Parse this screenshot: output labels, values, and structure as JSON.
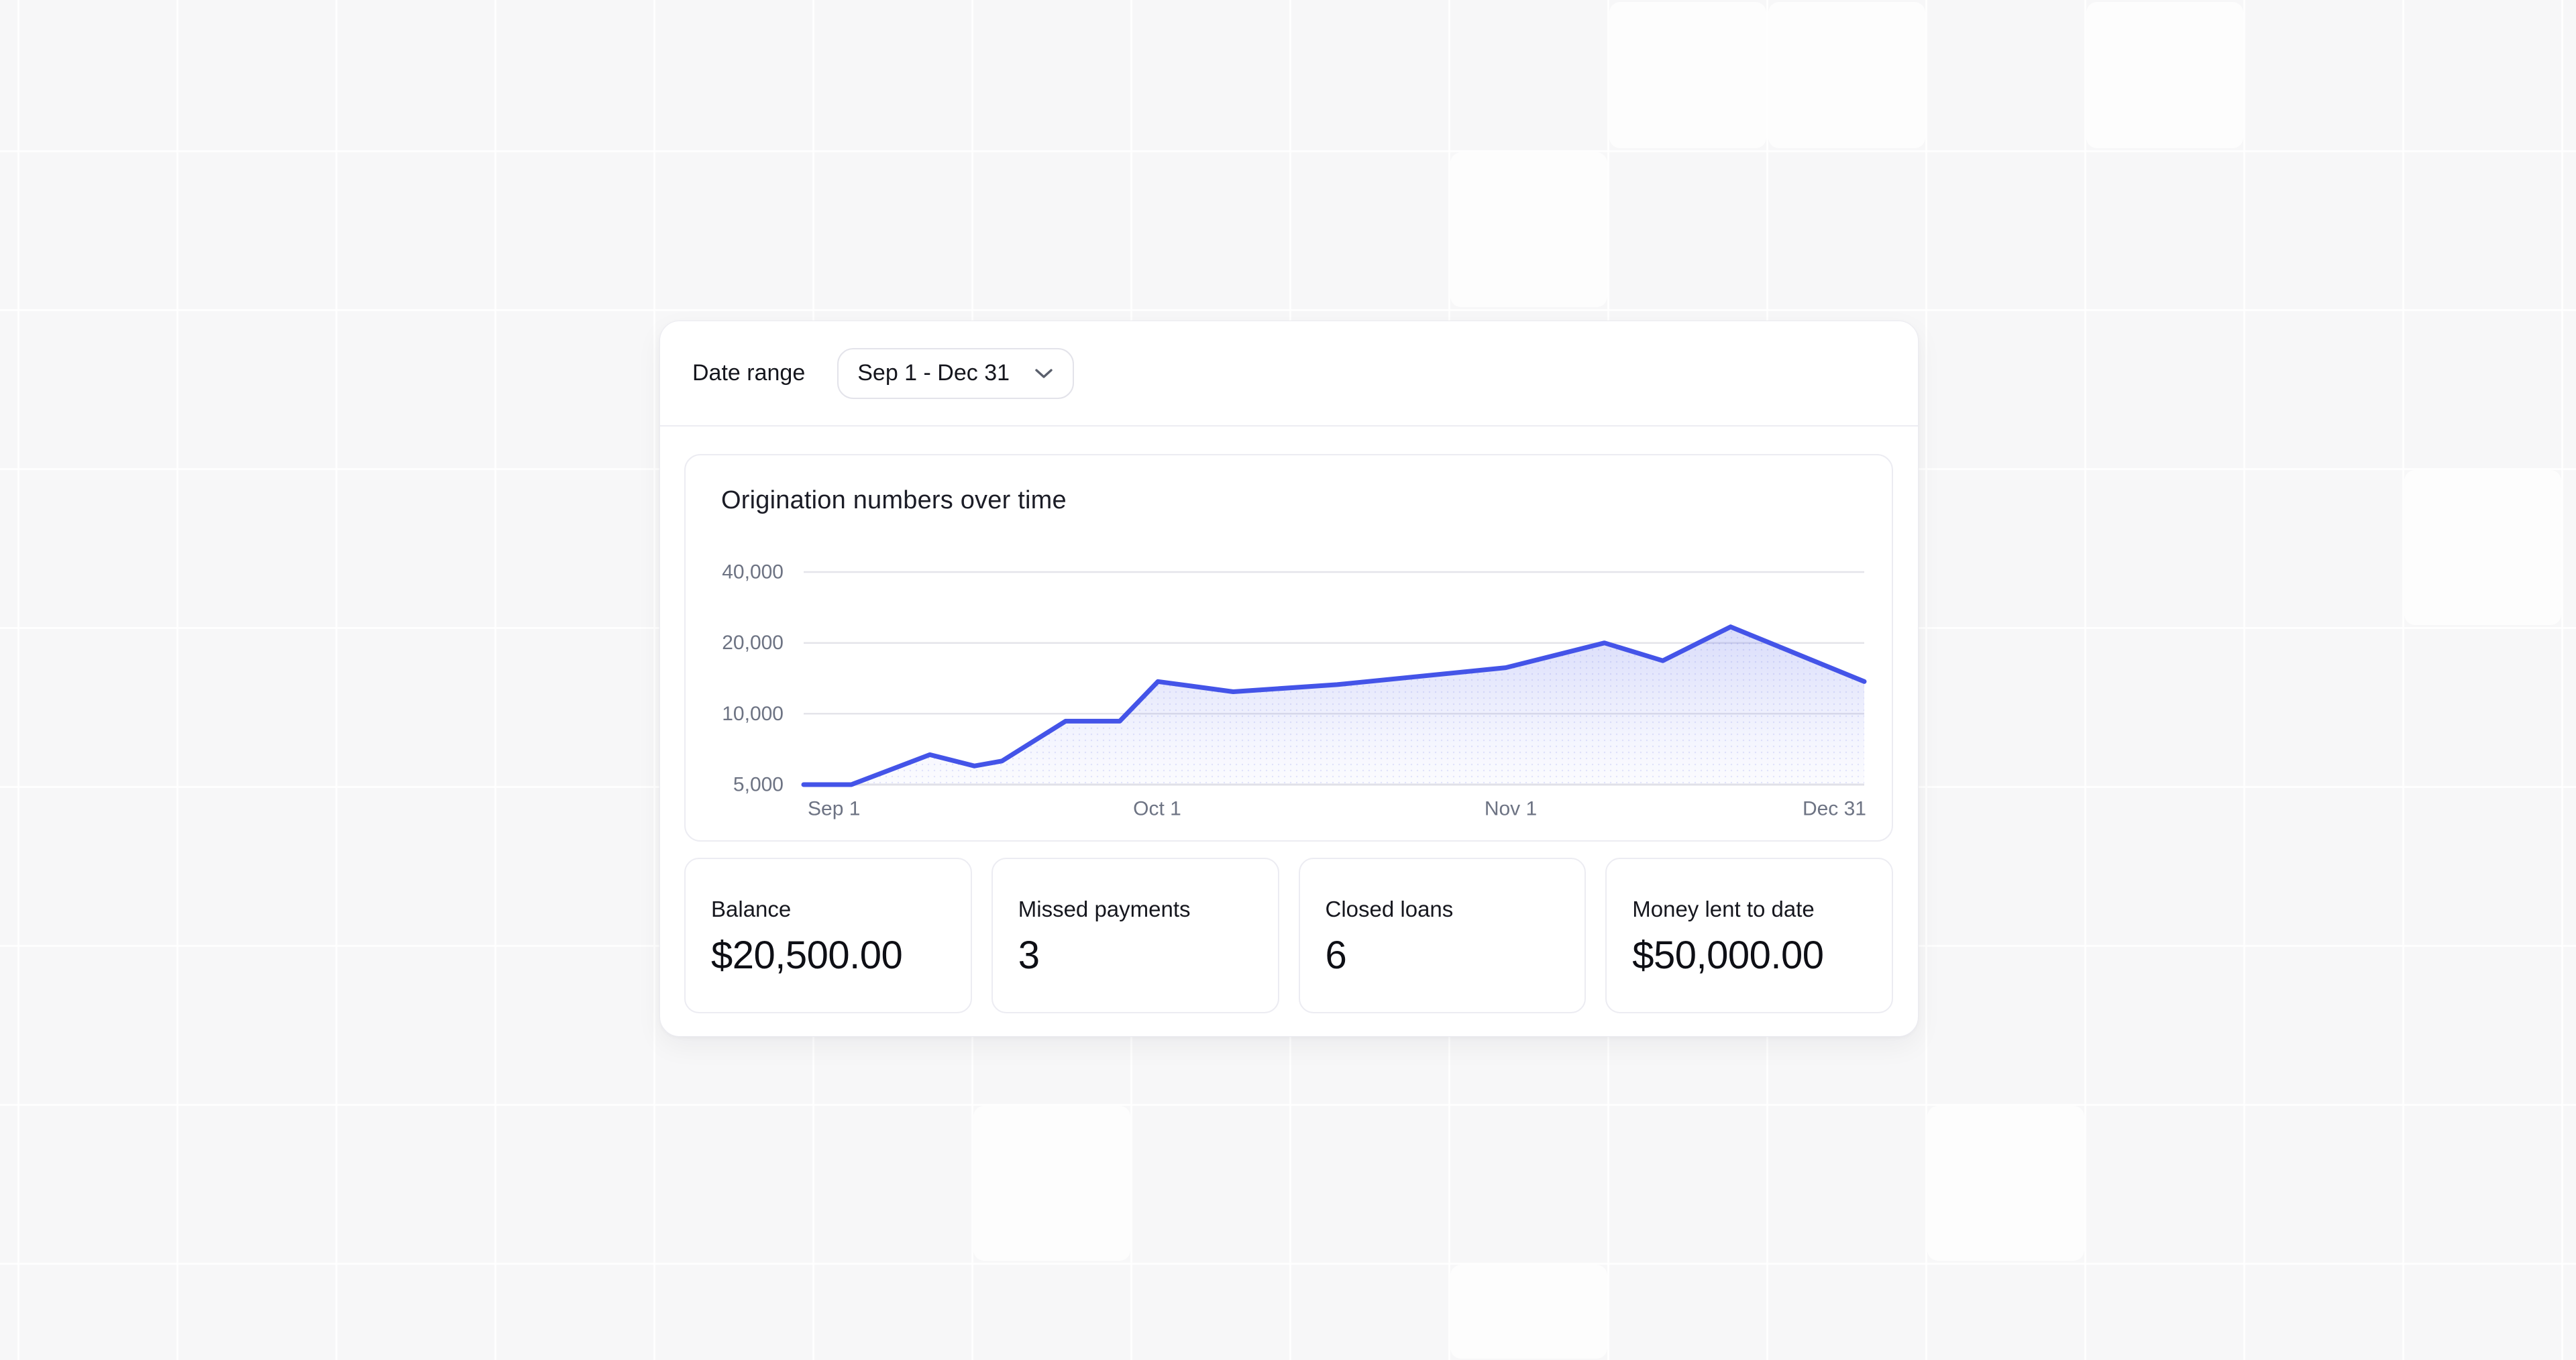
{
  "theme": {
    "background": "#f7f7f8",
    "card": "#ffffff",
    "border": "#ececf2",
    "accent": "#4454e8",
    "text": "#15161d",
    "muted_text": "#6d7383"
  },
  "header": {
    "label": "Date range",
    "select_value": "Sep 1 - Dec 31",
    "select_icon": "chevron-down"
  },
  "chart_data": {
    "type": "area",
    "title": "Origination numbers over time",
    "xlabel": "",
    "ylabel": "",
    "x_tick_labels": [
      "Sep 1",
      "Oct 1",
      "Nov 1",
      "Dec 31"
    ],
    "y_tick_values": [
      40000,
      20000,
      10000,
      5000
    ],
    "y_tick_labels": [
      "40,000",
      "20,000",
      "10,000",
      "5,000"
    ],
    "y_scale": "log2",
    "y_baseline_value": 5000,
    "grid": true,
    "legend": false,
    "line_color": "#4454e8",
    "fill_color": "#4454e8",
    "x_unit": "fraction of Sep 1 - Dec 31 range",
    "series": [
      {
        "name": "Originations",
        "points": [
          [
            0.0,
            5000
          ],
          [
            0.045,
            5000
          ],
          [
            0.119,
            6700
          ],
          [
            0.161,
            6000
          ],
          [
            0.187,
            6300
          ],
          [
            0.247,
            9300
          ],
          [
            0.298,
            9300
          ],
          [
            0.334,
            13700
          ],
          [
            0.405,
            12400
          ],
          [
            0.503,
            13300
          ],
          [
            0.662,
            15700
          ],
          [
            0.755,
            20000
          ],
          [
            0.81,
            16800
          ],
          [
            0.874,
            23400
          ],
          [
            1.0,
            13700
          ]
        ]
      }
    ]
  },
  "stats": [
    {
      "label": "Balance",
      "value": "$20,500.00"
    },
    {
      "label": "Missed payments",
      "value": "3"
    },
    {
      "label": "Closed loans",
      "value": "6"
    },
    {
      "label": "Money lent to date",
      "value": "$50,000.00"
    }
  ]
}
